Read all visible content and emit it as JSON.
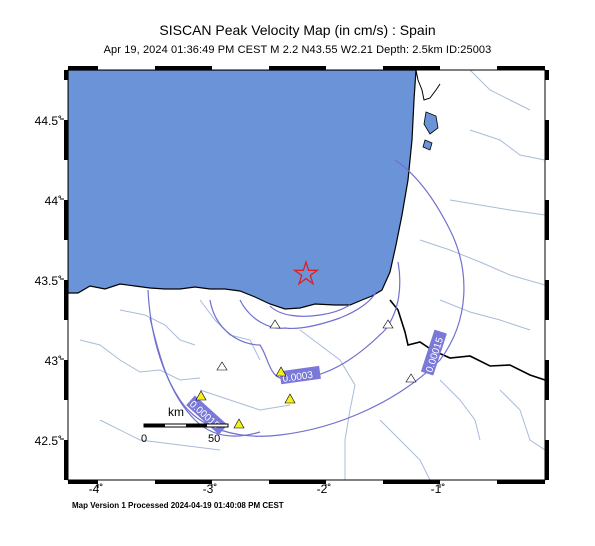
{
  "map": {
    "title": "SISCAN Peak Velocity Map (in cm/s) : Spain",
    "subtitle": "Apr 19, 2024 01:36:49 PM CEST   M 2.2   N43.55 W2.21   Depth: 2.5km   ID:25003",
    "footer": "Map Version 1 Processed 2024-04-19 01:40:08 PM CEST",
    "y_ticks": [
      "44.5˚",
      "44˚",
      "43.5˚",
      "43˚",
      "42.5˚"
    ],
    "x_ticks": [
      "-4˚",
      "-3˚",
      "-2˚",
      "-1˚"
    ],
    "contour_labels": [
      "0.0003",
      "0.00015",
      "0.00015"
    ],
    "scale_bar": {
      "unit": "km",
      "start": "0",
      "end": "50"
    },
    "epicenter": {
      "lat": 43.55,
      "lon": -2.21,
      "marker": "star-icon"
    },
    "colors": {
      "sea": "#6a93d8",
      "contour": "#7070d0",
      "label_bg": "#7a78d8",
      "station_yellow": "#f5ef20",
      "coast": "#000000",
      "river": "#a8bcd8"
    }
  }
}
